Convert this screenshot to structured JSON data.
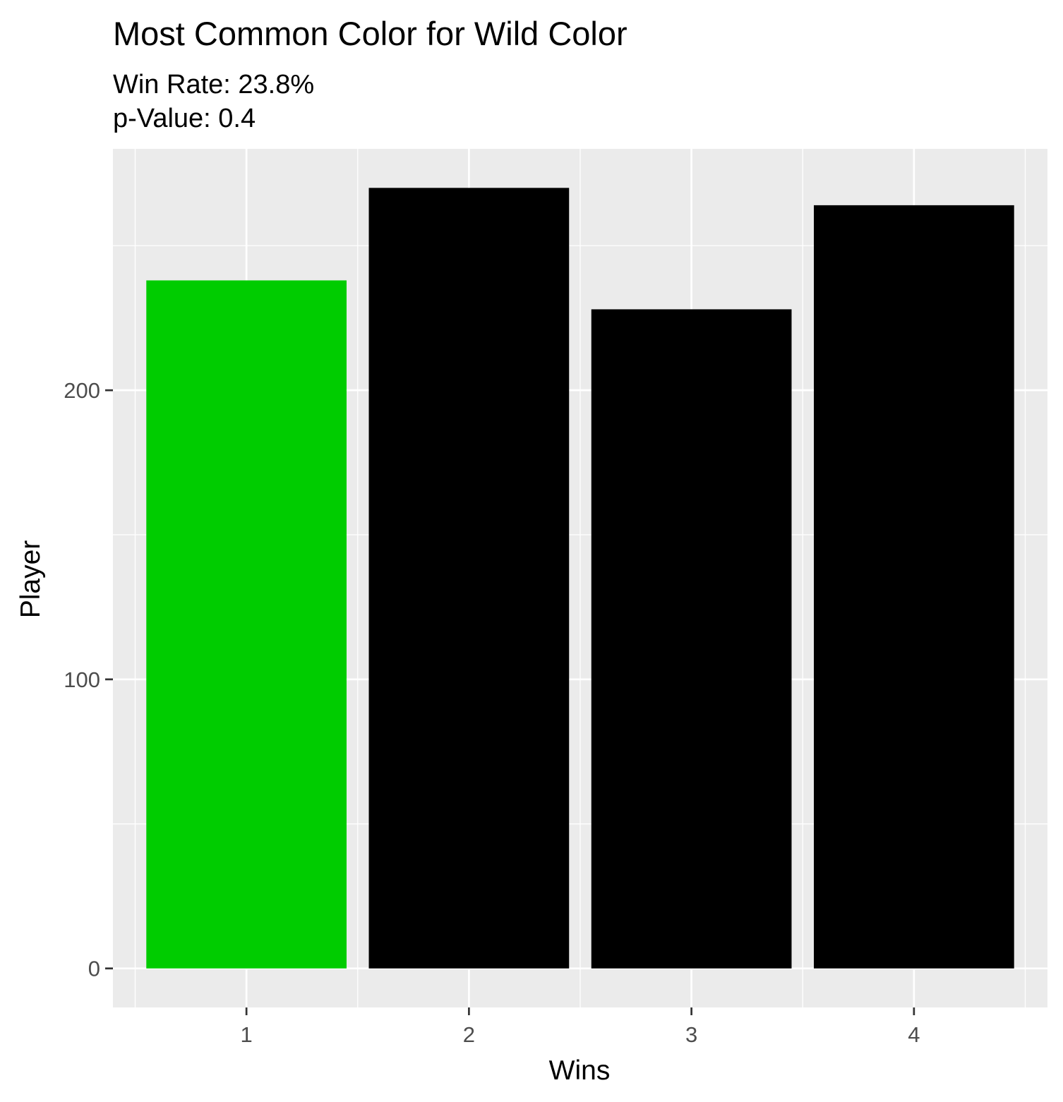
{
  "chart_data": {
    "type": "bar",
    "title": "Most Common Color for Wild Color",
    "subtitle_lines": [
      "Win Rate: 23.8%",
      "p-Value: 0.4"
    ],
    "xlabel": "Wins",
    "ylabel": "Player",
    "categories": [
      "1",
      "2",
      "3",
      "4"
    ],
    "values": [
      238,
      270,
      228,
      264
    ],
    "bar_colors": [
      "#00cc00",
      "#000000",
      "#000000",
      "#000000"
    ],
    "y_ticks": [
      0,
      100,
      200
    ],
    "y_tick_labels": [
      "0",
      "100",
      "200"
    ],
    "ylim": [
      -13.5,
      283.5
    ],
    "grid": true,
    "legend": "none",
    "panel_background": "#ebebeb",
    "grid_color": "#ffffff"
  }
}
